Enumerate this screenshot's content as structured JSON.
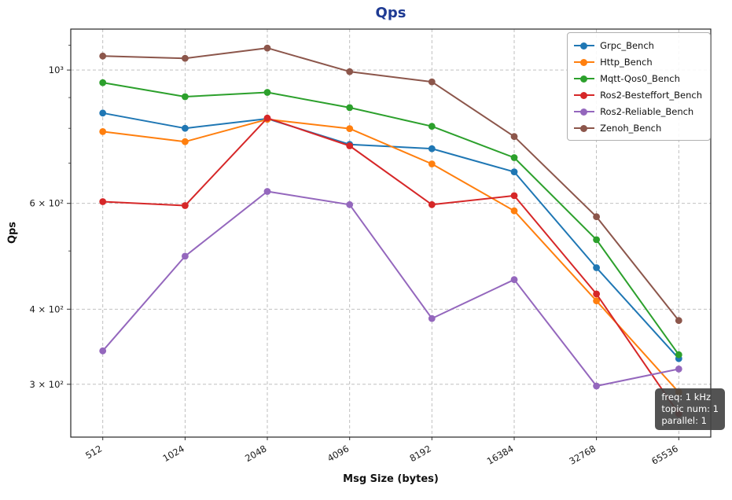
{
  "accent_colors": {
    "title_blue": "#1e3a93",
    "annotation_bg": "#444444",
    "grid_gray": "#b8b8b8"
  },
  "chart_data": {
    "type": "line",
    "title": "Qps",
    "xlabel": "Msg Size (bytes)",
    "ylabel": "Qps",
    "yscale": "log",
    "grid": true,
    "legend_position": "upper right",
    "categories": [
      "512",
      "1024",
      "2048",
      "4096",
      "8192",
      "16384",
      "32768",
      "65536"
    ],
    "series": [
      {
        "name": "Grpc_Bench",
        "color": "#1f77b4",
        "values": [
          848,
          800,
          830,
          752,
          740,
          677,
          469,
          331
        ]
      },
      {
        "name": "Http_Bench",
        "color": "#ff7f0e",
        "values": [
          790,
          760,
          828,
          799,
          698,
          583,
          413,
          291
        ]
      },
      {
        "name": "Mqtt-Qos0_Bench",
        "color": "#2ca02c",
        "values": [
          953,
          903,
          918,
          866,
          806,
          715,
          522,
          336
        ]
      },
      {
        "name": "Ros2-Besteffort_Bench",
        "color": "#d62728",
        "values": [
          604,
          595,
          832,
          748,
          597,
          618,
          424,
          268
        ]
      },
      {
        "name": "Ros2-Reliable_Bench",
        "color": "#9467bd",
        "values": [
          341,
          490,
          628,
          597,
          386,
          448,
          298,
          318
        ]
      },
      {
        "name": "Zenoh_Bench",
        "color": "#8c564b",
        "values": [
          1055,
          1046,
          1088,
          994,
          956,
          775,
          570,
          383
        ]
      }
    ],
    "ylim": [
      245,
      1170
    ],
    "yticks": [
      {
        "value": 1000,
        "label": "10³"
      },
      {
        "value": 600,
        "label": "6 × 10²"
      },
      {
        "value": 400,
        "label": "4 × 10²"
      },
      {
        "value": 300,
        "label": "3 × 10²"
      }
    ],
    "minor_yticks": [
      500,
      700,
      800,
      900,
      1100
    ],
    "annotation_lines": [
      "freq: 1 kHz",
      "topic num: 1",
      "parallel: 1"
    ]
  }
}
